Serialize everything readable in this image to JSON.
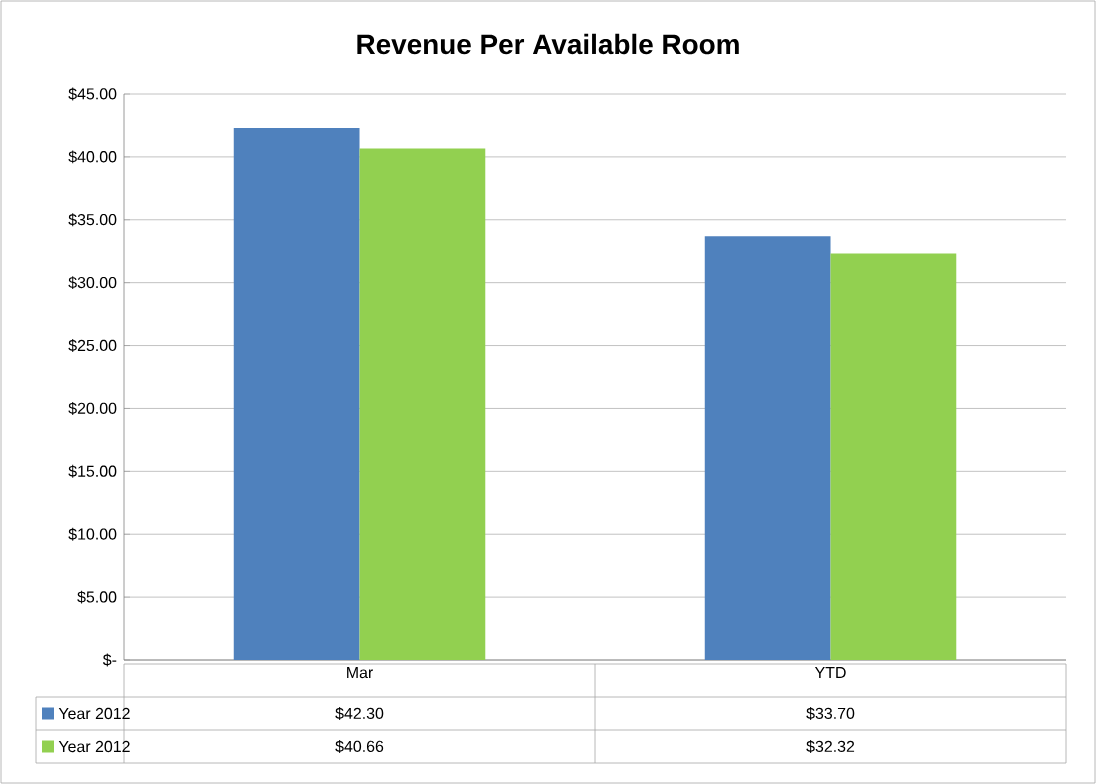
{
  "chart_data": {
    "type": "bar",
    "title": "Revenue Per Available Room",
    "categories": [
      "Mar",
      "YTD"
    ],
    "series": [
      {
        "name": "Year 2012",
        "color": "#4f81bd",
        "values": [
          42.3,
          33.7
        ],
        "value_labels": [
          "$42.30",
          "$33.70"
        ]
      },
      {
        "name": "Year 2012",
        "color": "#92d050",
        "values": [
          40.66,
          32.32
        ],
        "value_labels": [
          "$40.66",
          "$32.32"
        ]
      }
    ],
    "ylim": [
      0,
      45
    ],
    "yticks": [
      {
        "value": 0,
        "label": "$-"
      },
      {
        "value": 5,
        "label": "$5.00"
      },
      {
        "value": 10,
        "label": "$10.00"
      },
      {
        "value": 15,
        "label": "$15.00"
      },
      {
        "value": 20,
        "label": "$20.00"
      },
      {
        "value": 25,
        "label": "$25.00"
      },
      {
        "value": 30,
        "label": "$30.00"
      },
      {
        "value": 35,
        "label": "$35.00"
      },
      {
        "value": 40,
        "label": "$40.00"
      },
      {
        "value": 45,
        "label": "$45.00"
      }
    ],
    "grid": "y",
    "legend": "bottom"
  }
}
